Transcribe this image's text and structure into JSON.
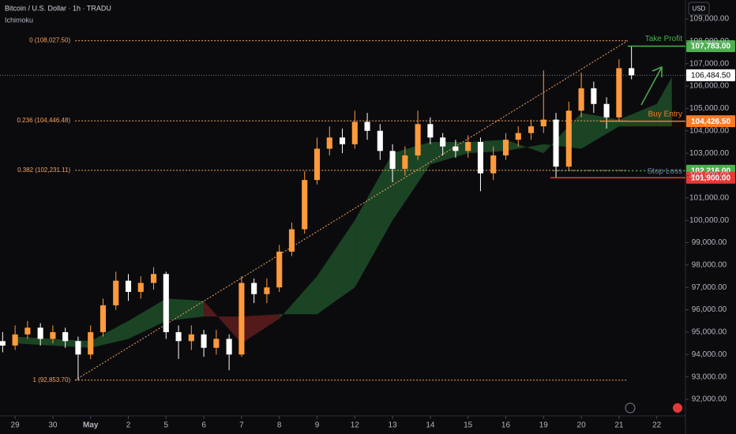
{
  "chart_data": {
    "type": "candlestick",
    "title": "Bitcoin / U.S. Dollar · 1h · TRADU",
    "indicator": "Ichimoku",
    "currency": "USD",
    "up_color": "#ff9a3c",
    "down_color": "#ffffff",
    "xlim": [
      -0.4,
      17.76
    ],
    "ylim": [
      91259,
      109847
    ],
    "xticks": [
      {
        "value": 0,
        "label": "29"
      },
      {
        "value": 1,
        "label": "30"
      },
      {
        "value": 2,
        "label": "May"
      },
      {
        "value": 3,
        "label": "2"
      },
      {
        "value": 4,
        "label": "5"
      },
      {
        "value": 5,
        "label": "6"
      },
      {
        "value": 6,
        "label": "7"
      },
      {
        "value": 7,
        "label": "8"
      },
      {
        "value": 8,
        "label": "9"
      },
      {
        "value": 9,
        "label": "12"
      },
      {
        "value": 10,
        "label": "13"
      },
      {
        "value": 11,
        "label": "14"
      },
      {
        "value": 12,
        "label": "15"
      },
      {
        "value": 13,
        "label": "16"
      },
      {
        "value": 14,
        "label": "19"
      },
      {
        "value": 15,
        "label": "20"
      },
      {
        "value": 16,
        "label": "21"
      },
      {
        "value": 17,
        "label": "22"
      }
    ],
    "yticks": [
      {
        "value": 92000,
        "label": "92,000.00"
      },
      {
        "value": 93000,
        "label": "93,000.00"
      },
      {
        "value": 94000,
        "label": "94,000.00"
      },
      {
        "value": 95000,
        "label": "95,000.00"
      },
      {
        "value": 96000,
        "label": "96,000.00"
      },
      {
        "value": 97000,
        "label": "97,000.00"
      },
      {
        "value": 98000,
        "label": "98,000.00"
      },
      {
        "value": 99000,
        "label": "99,000.00"
      },
      {
        "value": 100000,
        "label": "100,000.00"
      },
      {
        "value": 101000,
        "label": "101,000.00"
      },
      {
        "value": 102000,
        "label": "102,000.00"
      },
      {
        "value": 103000,
        "label": "103,000.00"
      },
      {
        "value": 104000,
        "label": "104,000.00"
      },
      {
        "value": 105000,
        "label": "105,000.00"
      },
      {
        "value": 106000,
        "label": "106,000.00"
      },
      {
        "value": 107000,
        "label": "107,000.00"
      },
      {
        "value": 108000,
        "label": "108,000.00"
      },
      {
        "value": 109000,
        "label": "109,000.00"
      }
    ],
    "x": [
      -0.33,
      0,
      0.33,
      0.67,
      1,
      1.33,
      1.67,
      2,
      2.33,
      2.67,
      3,
      3.33,
      3.67,
      4,
      4.33,
      4.67,
      5,
      5.33,
      5.67,
      6,
      6.33,
      6.67,
      7,
      7.33,
      7.67,
      8,
      8.33,
      8.67,
      9,
      9.33,
      9.67,
      10,
      10.33,
      10.67,
      11,
      11.33,
      11.67,
      12,
      12.33,
      12.67,
      13,
      13.33,
      13.67,
      14,
      14.33,
      14.67,
      15,
      15.33,
      15.67,
      16,
      16.33
    ],
    "open": [
      94600,
      94400,
      94900,
      95200,
      94700,
      95000,
      94600,
      94000,
      95000,
      96200,
      97300,
      96800,
      97200,
      97600,
      95000,
      94600,
      94900,
      94300,
      94700,
      94000,
      97200,
      96700,
      97000,
      98600,
      99600,
      101800,
      103200,
      103700,
      103400,
      104400,
      104000,
      103100,
      102300,
      102900,
      104300,
      103700,
      103300,
      103100,
      103500,
      102100,
      102900,
      103600,
      103900,
      104200,
      104500,
      102400,
      104900,
      105900,
      105200,
      104600,
      106800
    ],
    "high": [
      95000,
      95300,
      95500,
      95400,
      95300,
      95200,
      94800,
      95300,
      96500,
      97700,
      97600,
      97500,
      97900,
      97700,
      95300,
      95300,
      95100,
      95100,
      94900,
      97500,
      97400,
      97400,
      98900,
      99900,
      102200,
      103700,
      104200,
      104100,
      104900,
      104800,
      104300,
      103400,
      103300,
      104900,
      104600,
      103900,
      103600,
      103800,
      103700,
      103300,
      103900,
      104200,
      104500,
      106700,
      104800,
      105300,
      106600,
      106200,
      105500,
      107200,
      107800
    ],
    "low": [
      94100,
      94200,
      94700,
      94400,
      94500,
      94300,
      92853.7,
      93800,
      94800,
      96000,
      96400,
      96500,
      96900,
      94700,
      93800,
      94200,
      93900,
      94000,
      93300,
      93900,
      96300,
      96300,
      96800,
      98400,
      99400,
      101600,
      102900,
      103000,
      103200,
      103600,
      102700,
      101700,
      102000,
      102700,
      103400,
      102900,
      102800,
      102800,
      101300,
      101800,
      102700,
      103300,
      103600,
      103900,
      101900,
      102200,
      104600,
      104800,
      104100,
      104400,
      106300
    ],
    "close": [
      94400,
      94900,
      95200,
      94700,
      95000,
      94600,
      94000,
      95000,
      96200,
      97300,
      96800,
      97200,
      97600,
      95000,
      94600,
      94900,
      94300,
      94700,
      94000,
      97200,
      96700,
      97000,
      98600,
      99600,
      101800,
      103200,
      103700,
      103400,
      104400,
      104000,
      103100,
      102300,
      102900,
      104300,
      103700,
      103300,
      103100,
      103500,
      102100,
      102900,
      103600,
      103900,
      104200,
      104500,
      102400,
      104900,
      105900,
      105200,
      104600,
      106800,
      106484.5
    ],
    "cloud": {
      "x": [
        0,
        1,
        2,
        3,
        4,
        5,
        6,
        7,
        8,
        9,
        10,
        11,
        12,
        13,
        14,
        15,
        16,
        17,
        17.4
      ],
      "span_a": [
        94800,
        94700,
        94600,
        95500,
        96500,
        96400,
        94500,
        95600,
        97500,
        100000,
        103000,
        103500,
        103500,
        103600,
        103000,
        104800,
        104500,
        105200,
        106400
      ],
      "span_b": [
        94500,
        94400,
        94300,
        94700,
        95500,
        95700,
        95700,
        95800,
        95800,
        97000,
        100000,
        102500,
        103000,
        103100,
        103400,
        103200,
        104200,
        104200,
        104200
      ],
      "up_color": "#1d4a27",
      "down_color": "#5a1c1c"
    },
    "fib": {
      "x": [
        1.59,
        16.23
      ],
      "color": "#f5a35c",
      "levels": [
        {
          "value": 108027.5,
          "label": "0 (108,027.50)"
        },
        {
          "value": 104446.48,
          "label": "0.236 (104,446.48)"
        },
        {
          "value": 102231.11,
          "label": "0.382 (102,231.11)"
        },
        {
          "value": 92853.7,
          "label": "1 (92,853.70)"
        }
      ],
      "trend": [
        92853.7,
        108027.5
      ]
    },
    "current_price": {
      "value": 106484.5,
      "label": "106,484.50"
    },
    "trade_levels": [
      {
        "text": "Take Profit",
        "value": 107783,
        "value_label": "107,783.00",
        "color": "#4caf50",
        "x_start": 16.23
      },
      {
        "text": "Buy Entry",
        "value": 104426.5,
        "value_label": "104,426.50",
        "color": "#f57c2a",
        "x_start": 15.5
      },
      {
        "text": "Stop Loss",
        "value": 102216,
        "value_label": "102,216.00",
        "color": "#4caf50",
        "x_start": 14.25
      },
      {
        "value": 101900,
        "value_label": "101,900.00",
        "color": "#e53935",
        "x_start": 14.18
      }
    ]
  }
}
